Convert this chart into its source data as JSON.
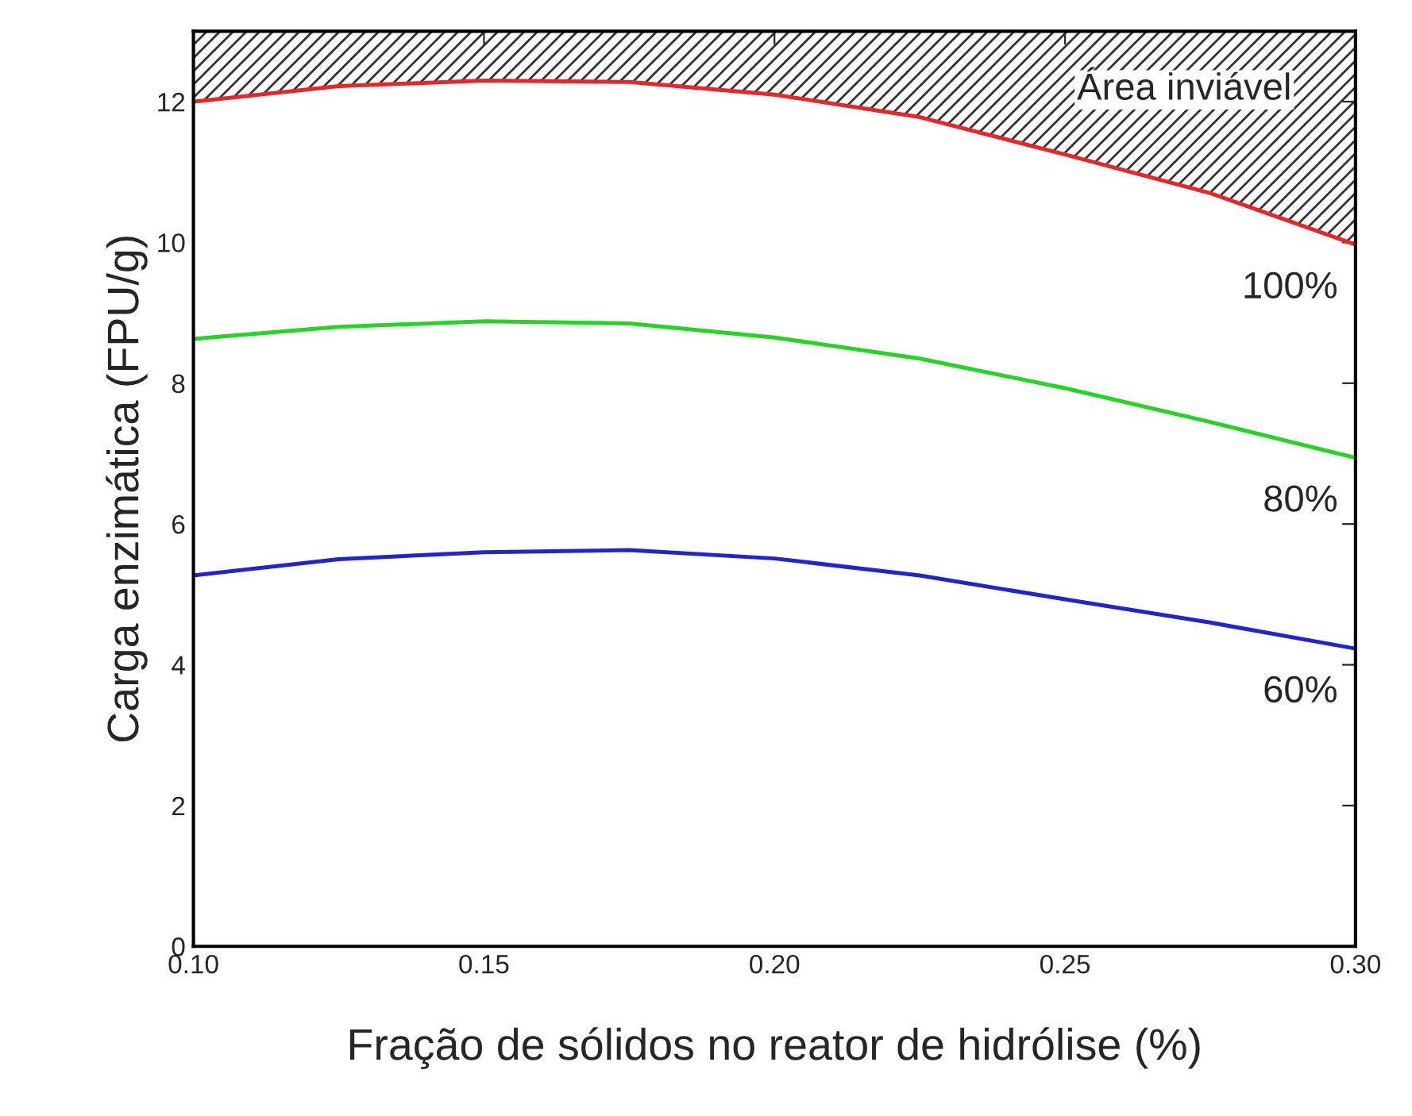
{
  "chart_data": {
    "type": "line",
    "xlabel": "Fração de sólidos no reator de hidrólise (%)",
    "ylabel": "Carga enzimática (FPU/g)",
    "xlim": [
      0.1,
      0.3
    ],
    "ylim": [
      0,
      13
    ],
    "xticks": [
      {
        "value": 0.1,
        "label": "0.10"
      },
      {
        "value": 0.15,
        "label": "0.15"
      },
      {
        "value": 0.2,
        "label": "0.20"
      },
      {
        "value": 0.25,
        "label": "0.25"
      },
      {
        "value": 0.3,
        "label": "0.30"
      }
    ],
    "yticks": [
      0,
      2,
      4,
      6,
      8,
      10,
      12
    ],
    "x": [
      0.1,
      0.125,
      0.15,
      0.175,
      0.2,
      0.225,
      0.25,
      0.275,
      0.3
    ],
    "series": [
      {
        "name": "100%",
        "color": "#e8262a",
        "values": [
          12.0,
          12.22,
          12.3,
          12.28,
          12.1,
          11.78,
          11.25,
          10.7,
          9.97
        ]
      },
      {
        "name": "80%",
        "color": "#22d622",
        "values": [
          8.63,
          8.8,
          8.88,
          8.85,
          8.65,
          8.35,
          7.93,
          7.45,
          6.94
        ]
      },
      {
        "name": "60%",
        "color": "#2323d6",
        "values": [
          5.27,
          5.5,
          5.6,
          5.63,
          5.51,
          5.27,
          4.93,
          4.6,
          4.23
        ]
      }
    ],
    "annotations": [
      "Área inviável"
    ],
    "grid": false,
    "legend": false,
    "marker": "none",
    "line_style": "solid"
  }
}
